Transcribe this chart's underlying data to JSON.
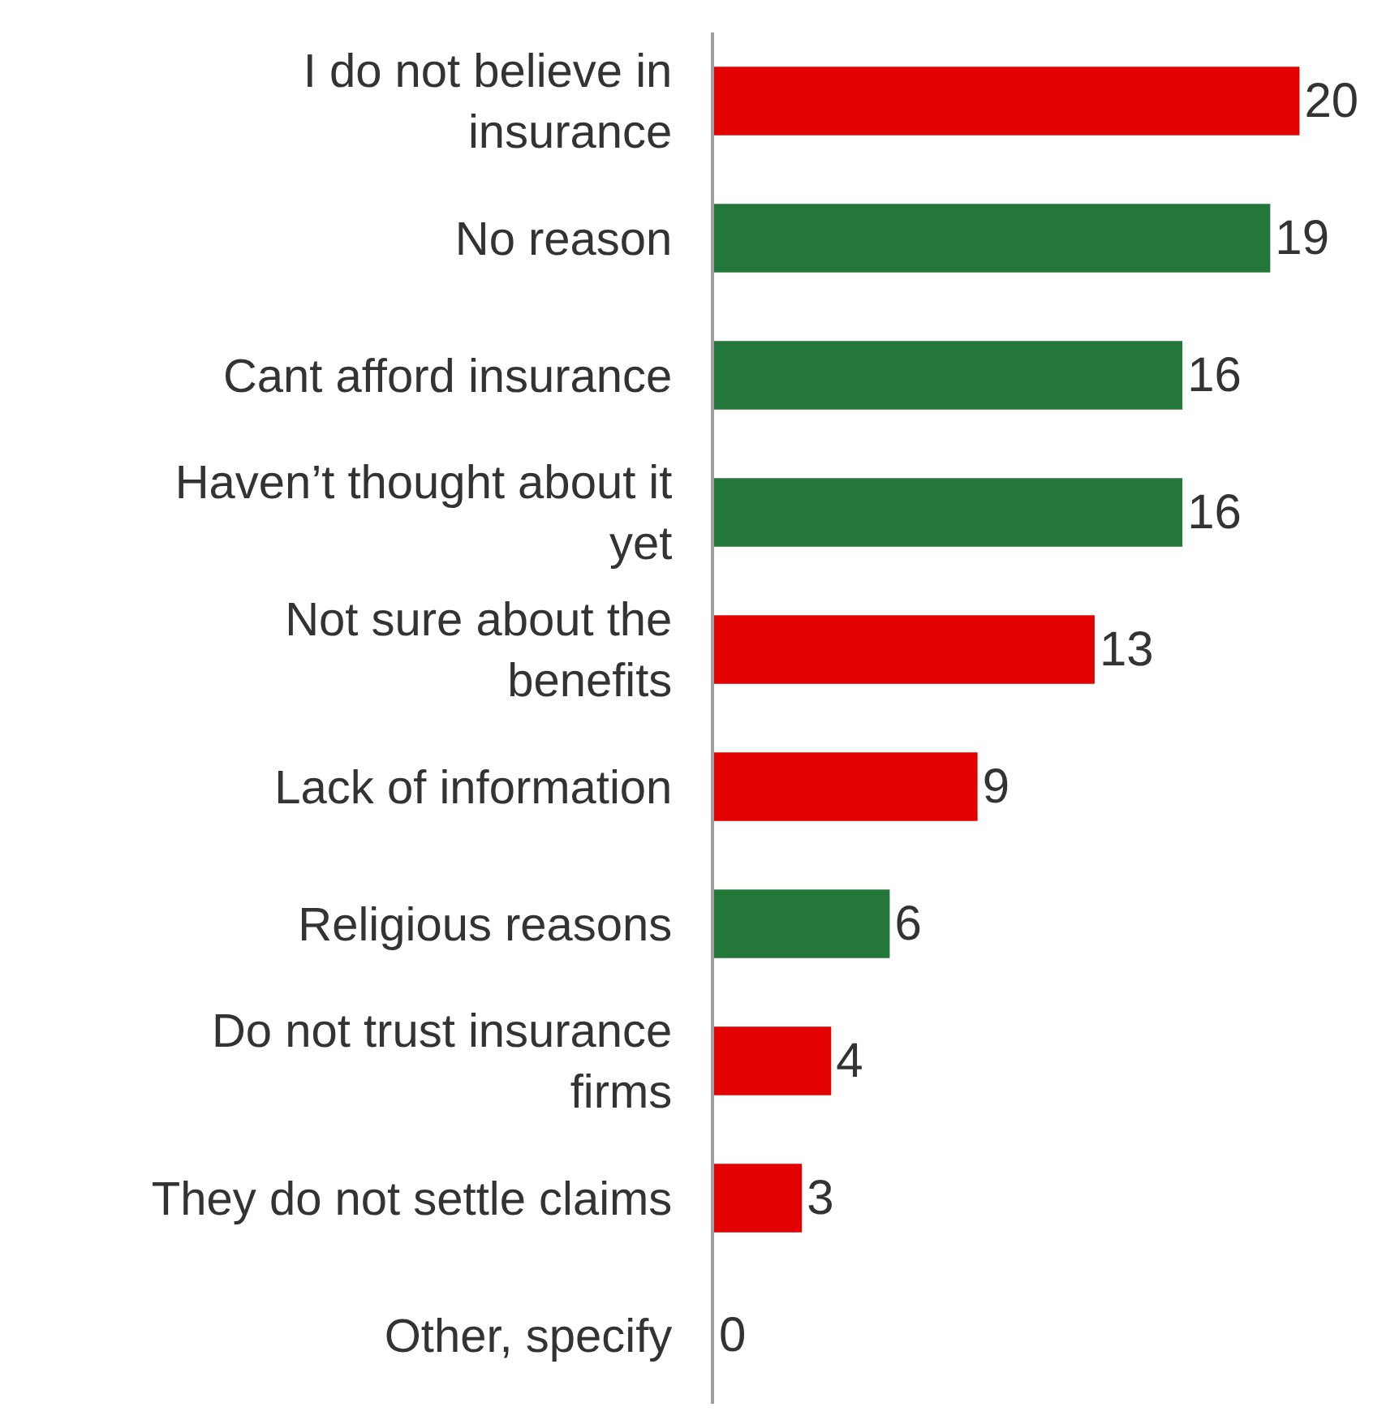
{
  "chart_data": {
    "type": "bar",
    "orientation": "horizontal",
    "categories": [
      "I do not believe in insurance",
      "No reason",
      "Cant afford insurance",
      "Haven’t thought about it yet",
      "Not sure about the benefits",
      "Lack of information",
      "Religious reasons",
      "Do not trust insurance firms",
      "They do not settle claims",
      "Other, specify"
    ],
    "values": [
      20,
      19,
      16,
      16,
      13,
      9,
      6,
      4,
      3,
      0
    ],
    "colors": [
      "#e20000",
      "#24773a",
      "#24773a",
      "#24773a",
      "#e20000",
      "#e20000",
      "#24773a",
      "#e20000",
      "#e20000",
      "#24773a"
    ],
    "data_labels": true
  }
}
